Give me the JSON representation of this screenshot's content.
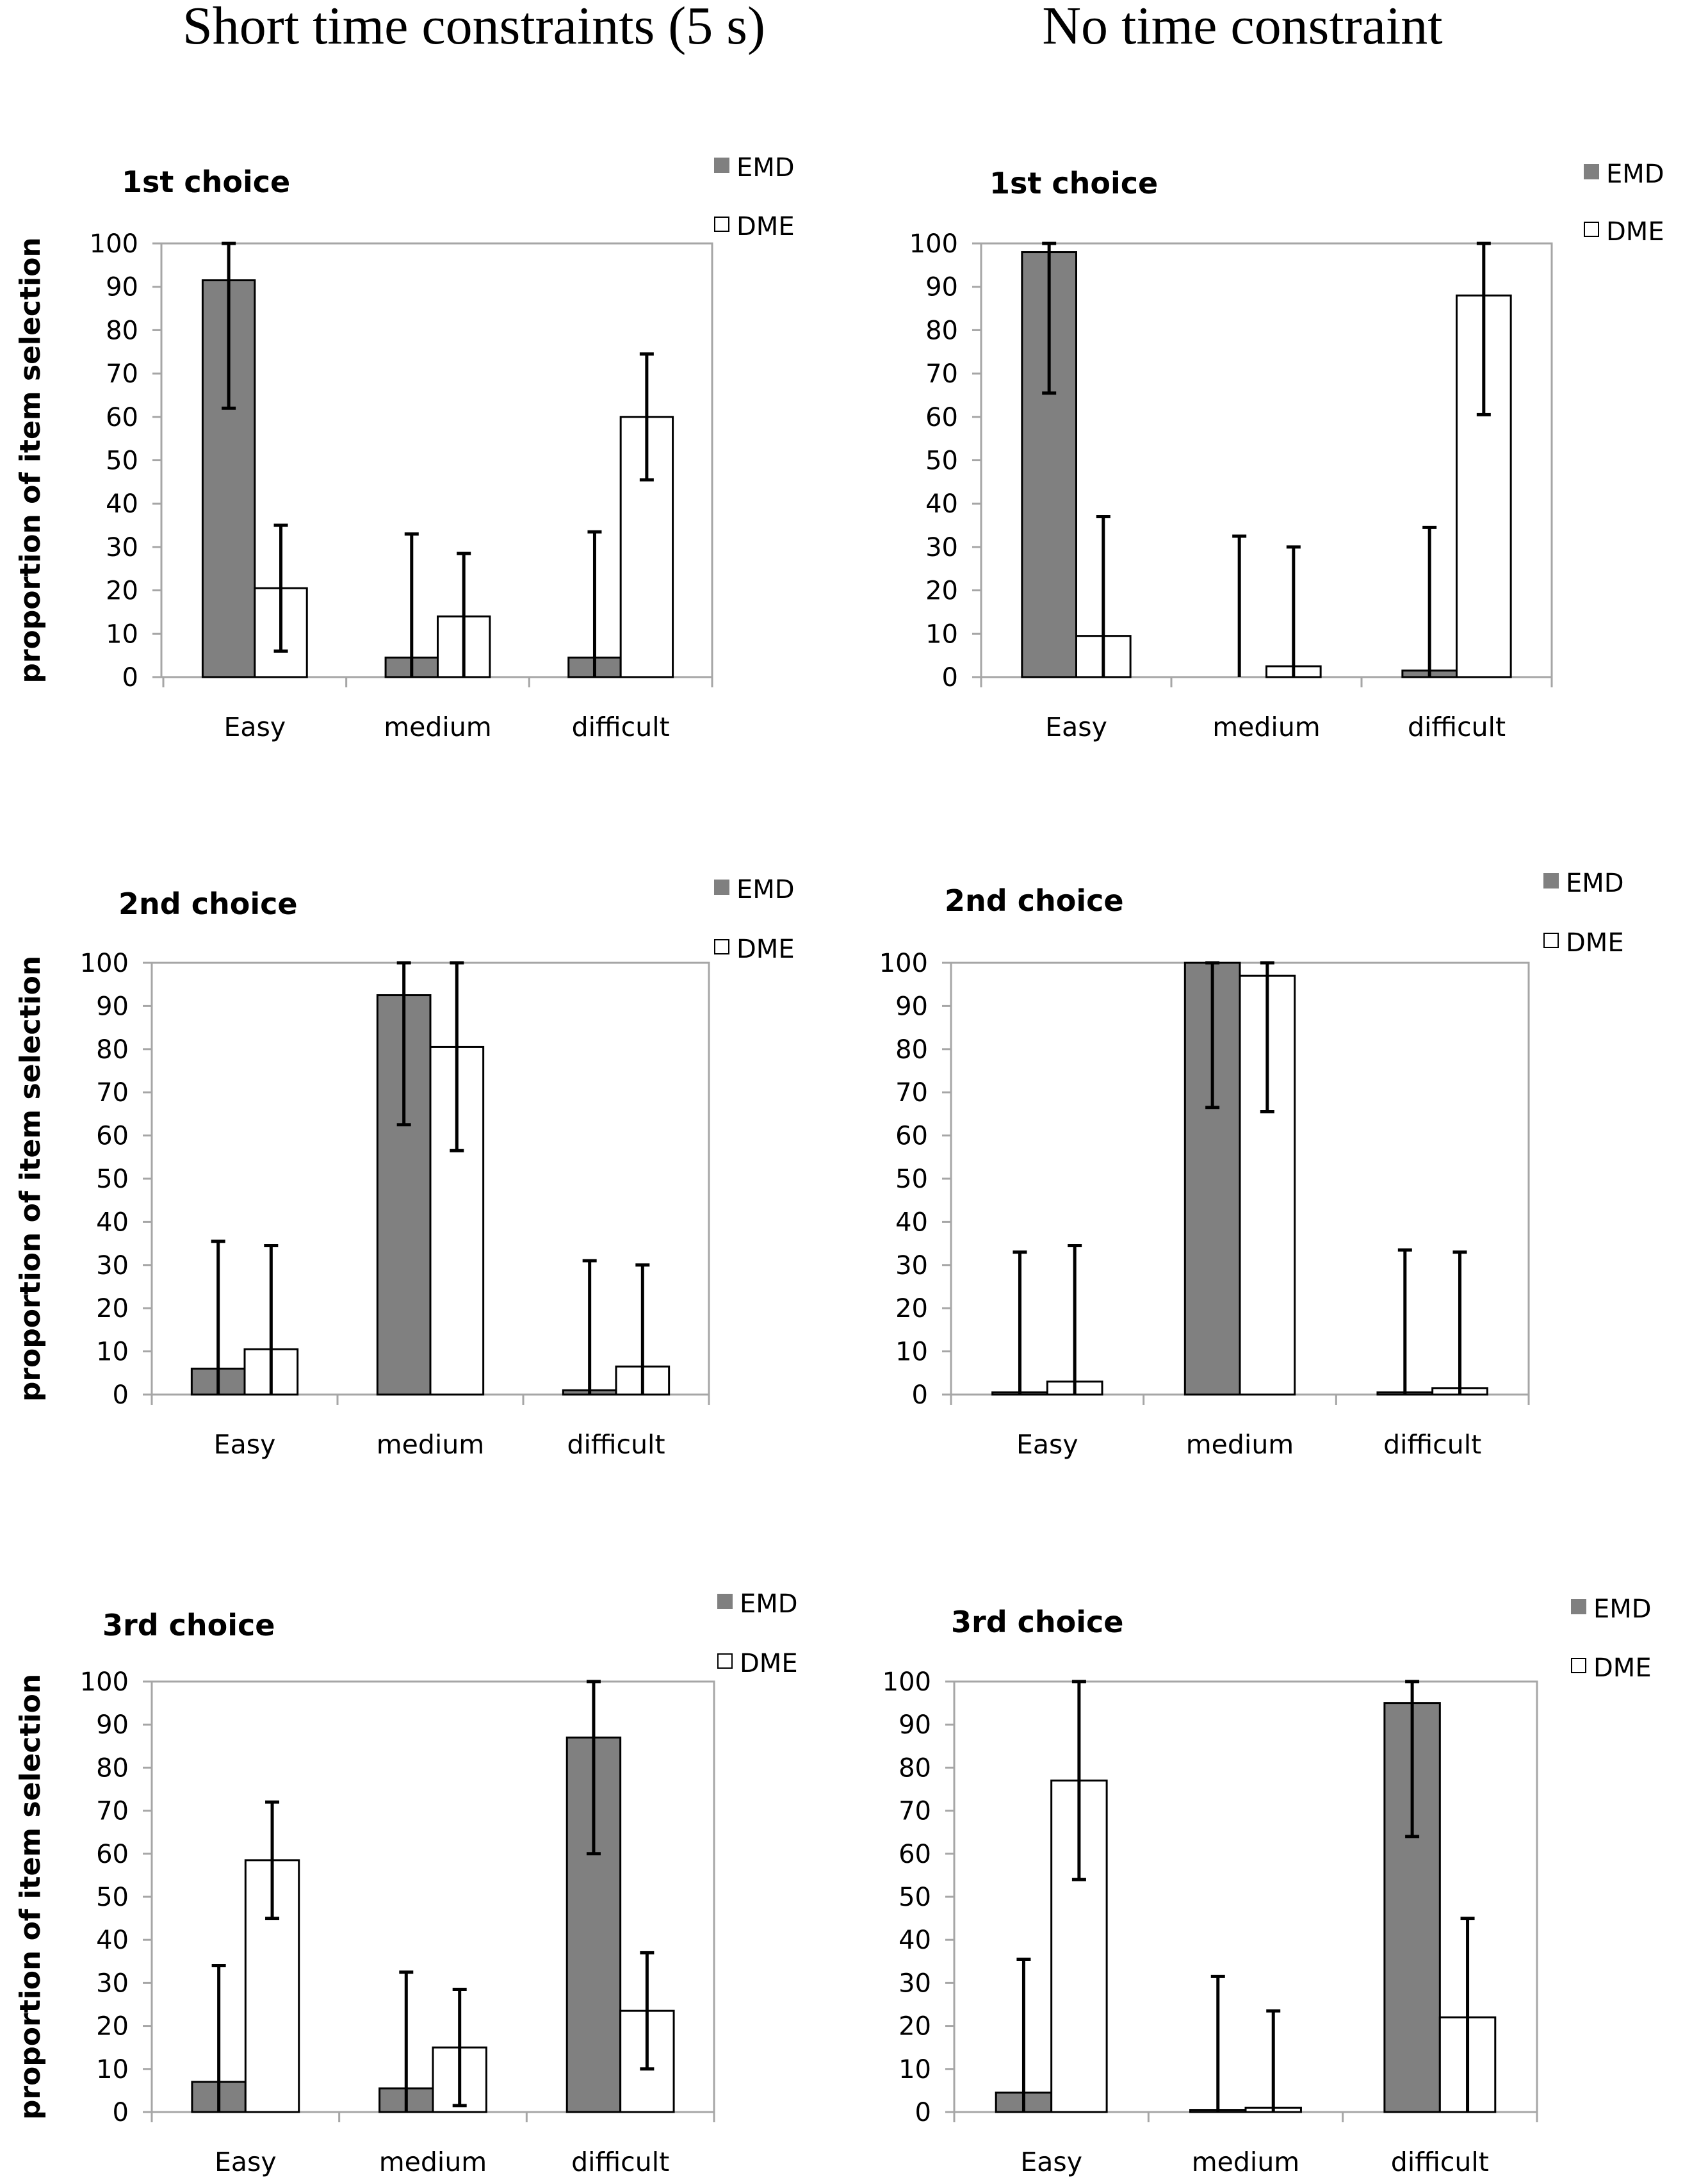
{
  "column_titles": [
    "Short time constraints (5 s)",
    "No time constraint"
  ],
  "colors": {
    "emd_fill": "#808080",
    "dme_fill": "#ffffff",
    "stroke": "#000000",
    "axis": "#a6a6a6"
  },
  "chart_data": [
    {
      "type": "bar",
      "panel": "Short time constraints (5 s)",
      "title": "1st choice",
      "categories": [
        "Easy",
        "medium",
        "difficult"
      ],
      "ylabel": "proportion of item selection",
      "ylim": [
        0,
        100
      ],
      "yticks": [
        0,
        10,
        20,
        30,
        40,
        50,
        60,
        70,
        80,
        90,
        100
      ],
      "legend": [
        "EMD",
        "DME"
      ],
      "series": [
        {
          "name": "EMD",
          "values": [
            91.5,
            4.5,
            4.5
          ],
          "err_low": [
            62,
            0,
            0
          ],
          "err_high": [
            100,
            33,
            33.5
          ]
        },
        {
          "name": "DME",
          "values": [
            20.5,
            14,
            60
          ],
          "err_low": [
            6,
            0,
            45.5
          ],
          "err_high": [
            35,
            28.5,
            74.5
          ]
        }
      ]
    },
    {
      "type": "bar",
      "panel": "No time constraint",
      "title": "1st choice",
      "categories": [
        "Easy",
        "medium",
        "difficult"
      ],
      "ylabel": "",
      "ylim": [
        0,
        100
      ],
      "yticks": [
        0,
        10,
        20,
        30,
        40,
        50,
        60,
        70,
        80,
        90,
        100
      ],
      "legend": [
        "EMD",
        "DME"
      ],
      "series": [
        {
          "name": "EMD",
          "values": [
            98,
            0,
            1.5
          ],
          "err_low": [
            65.5,
            0,
            0
          ],
          "err_high": [
            100,
            32.5,
            34.5
          ]
        },
        {
          "name": "DME",
          "values": [
            9.5,
            2.5,
            88
          ],
          "err_low": [
            0,
            0,
            60.5
          ],
          "err_high": [
            37,
            30,
            100
          ]
        }
      ]
    },
    {
      "type": "bar",
      "panel": "Short time constraints (5 s)",
      "title": "2nd choice",
      "categories": [
        "Easy",
        "medium",
        "difficult"
      ],
      "ylabel": "proportion of item selection",
      "ylim": [
        0,
        100
      ],
      "yticks": [
        0,
        10,
        20,
        30,
        40,
        50,
        60,
        70,
        80,
        90,
        100
      ],
      "legend": [
        "EMD",
        "DME"
      ],
      "series": [
        {
          "name": "EMD",
          "values": [
            6,
            92.5,
            1
          ],
          "err_low": [
            0,
            62.5,
            0
          ],
          "err_high": [
            35.5,
            100,
            31
          ]
        },
        {
          "name": "DME",
          "values": [
            10.5,
            80.5,
            6.5
          ],
          "err_low": [
            0,
            56.5,
            0
          ],
          "err_high": [
            34.5,
            100,
            30
          ]
        }
      ]
    },
    {
      "type": "bar",
      "panel": "No time constraint",
      "title": "2nd choice",
      "categories": [
        "Easy",
        "medium",
        "difficult"
      ],
      "ylabel": "",
      "ylim": [
        0,
        100
      ],
      "yticks": [
        0,
        10,
        20,
        30,
        40,
        50,
        60,
        70,
        80,
        90,
        100
      ],
      "legend": [
        "EMD",
        "DME"
      ],
      "series": [
        {
          "name": "EMD",
          "values": [
            0.5,
            100,
            0.5
          ],
          "err_low": [
            0,
            66.5,
            0
          ],
          "err_high": [
            33,
            100,
            33.5
          ]
        },
        {
          "name": "DME",
          "values": [
            3,
            97,
            1.5
          ],
          "err_low": [
            0,
            65.5,
            0
          ],
          "err_high": [
            34.5,
            100,
            33
          ]
        }
      ]
    },
    {
      "type": "bar",
      "panel": "Short time constraints (5 s)",
      "title": "3rd choice",
      "categories": [
        "Easy",
        "medium",
        "difficult"
      ],
      "ylabel": "proportion of item selection",
      "ylim": [
        0,
        100
      ],
      "yticks": [
        0,
        10,
        20,
        30,
        40,
        50,
        60,
        70,
        80,
        90,
        100
      ],
      "legend": [
        "EMD",
        "DME"
      ],
      "series": [
        {
          "name": "EMD",
          "values": [
            7,
            5.5,
            87
          ],
          "err_low": [
            0,
            0,
            60
          ],
          "err_high": [
            34,
            32.5,
            100
          ]
        },
        {
          "name": "DME",
          "values": [
            58.5,
            15,
            23.5
          ],
          "err_low": [
            45,
            1.5,
            10
          ],
          "err_high": [
            72,
            28.5,
            37
          ]
        }
      ]
    },
    {
      "type": "bar",
      "panel": "No time constraint",
      "title": "3rd choice",
      "categories": [
        "Easy",
        "medium",
        "difficult"
      ],
      "ylabel": "",
      "ylim": [
        0,
        100
      ],
      "yticks": [
        0,
        10,
        20,
        30,
        40,
        50,
        60,
        70,
        80,
        90,
        100
      ],
      "legend": [
        "EMD",
        "DME"
      ],
      "series": [
        {
          "name": "EMD",
          "values": [
            4.5,
            0.5,
            95
          ],
          "err_low": [
            0,
            0,
            64
          ],
          "err_high": [
            35.5,
            31.5,
            100
          ]
        },
        {
          "name": "DME",
          "values": [
            77,
            1,
            22
          ],
          "err_low": [
            54,
            0,
            0
          ],
          "err_high": [
            100,
            23.5,
            45
          ]
        }
      ]
    }
  ]
}
